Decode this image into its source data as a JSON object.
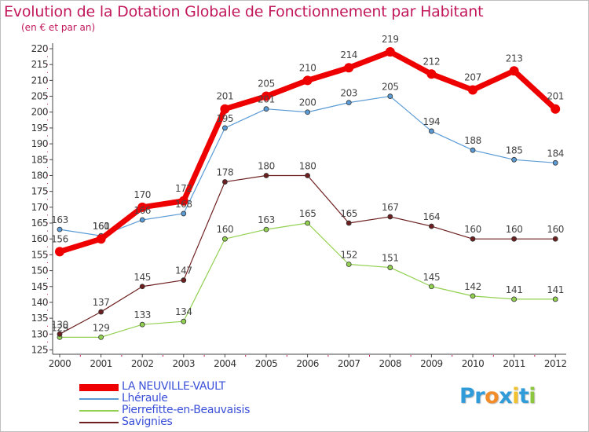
{
  "header": {
    "title": "Evolution de la Dotation Globale de Fonctionnement par Habitant",
    "subtitle": "(en € et par an)"
  },
  "colors": {
    "title": "#c2185b",
    "legend_text": "#3a4fd8",
    "axis": "#444444",
    "tick_text": "#333333",
    "label_text": "#444444",
    "axis_marks": "#c2185b"
  },
  "branding": {
    "logo_letters": [
      {
        "char": "P",
        "color": "#2f9bd8"
      },
      {
        "char": "r",
        "color": "#2f9bd8"
      },
      {
        "char": "o",
        "color": "#f28c28"
      },
      {
        "char": "x",
        "color": "#2f9bd8"
      },
      {
        "char": "i",
        "color": "#f2c12e"
      },
      {
        "char": "t",
        "color": "#2f9bd8"
      },
      {
        "char": "i",
        "color": "#8cc63f"
      }
    ]
  },
  "chart_data": {
    "type": "line",
    "title": "Evolution de la Dotation Globale de Fonctionnement par Habitant",
    "subtitle": "(en € et par an)",
    "x": [
      "2000",
      "2001",
      "2002",
      "2003",
      "2004",
      "2005",
      "2006",
      "2007",
      "2008",
      "2009",
      "2010",
      "2011",
      "2012"
    ],
    "ylim": [
      125,
      220
    ],
    "yticks": [
      125,
      130,
      135,
      140,
      145,
      150,
      155,
      160,
      165,
      170,
      175,
      180,
      185,
      190,
      195,
      200,
      205,
      210,
      215,
      220
    ],
    "grid": false,
    "legend_position": "bottom-left",
    "series": [
      {
        "name": "LA NEUVILLE-VAULT",
        "color": "#ee0000",
        "width": 7,
        "marker": 6,
        "values": [
          156,
          160,
          170,
          172,
          201,
          205,
          210,
          214,
          219,
          212,
          207,
          213,
          201
        ]
      },
      {
        "name": "Lhéraule",
        "color": "#5b9bd5",
        "width": 1.2,
        "marker": 3,
        "values": [
          163,
          161,
          166,
          168,
          195,
          201,
          200,
          203,
          205,
          194,
          188,
          185,
          184
        ]
      },
      {
        "name": "Pierrefitte-en-Beauvaisis",
        "color": "#92d050",
        "width": 1.2,
        "marker": 3,
        "values": [
          129,
          129,
          133,
          134,
          160,
          163,
          165,
          152,
          151,
          145,
          142,
          141,
          141
        ]
      },
      {
        "name": "Savignies",
        "color": "#6d1f1f",
        "width": 1.2,
        "marker": 3,
        "values": [
          130,
          137,
          145,
          147,
          178,
          180,
          180,
          165,
          167,
          164,
          160,
          160,
          160
        ]
      }
    ]
  }
}
